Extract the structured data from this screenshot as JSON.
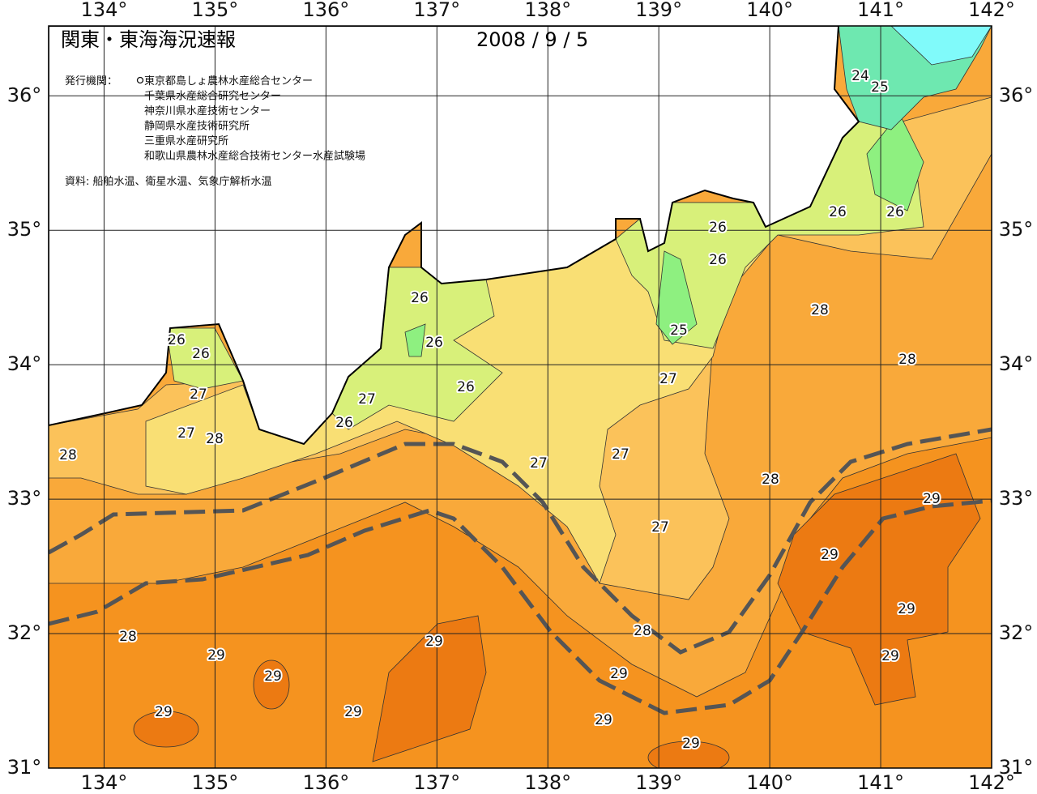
{
  "map": {
    "title": "関東・東海海況速報",
    "date": "2008 / 9 / 5",
    "publisher_label": "発行機関：",
    "publishers": [
      "東京都島しょ農林水産総合センター",
      "千葉県水産総合研究センター",
      "神奈川県水産技術センター",
      "静岡県水産技術研究所",
      "三重県水産研究所",
      "和歌山県農林水産総合技術センター水産試験場"
    ],
    "source": "資料: 船舶水温、衛星水温、気象庁解析水温",
    "xlim": [
      133.5,
      142
    ],
    "ylim": [
      31,
      36.52
    ],
    "xticks": [
      {
        "value": 134,
        "label": "134°"
      },
      {
        "value": 135,
        "label": "135°"
      },
      {
        "value": 136,
        "label": "136°"
      },
      {
        "value": 137,
        "label": "137°"
      },
      {
        "value": 138,
        "label": "138°"
      },
      {
        "value": 139,
        "label": "139°"
      },
      {
        "value": 140,
        "label": "140°"
      },
      {
        "value": 141,
        "label": "141°"
      },
      {
        "value": 142,
        "label": "142°"
      }
    ],
    "yticks": [
      {
        "value": 31,
        "label": "31°"
      },
      {
        "value": 32,
        "label": "32°"
      },
      {
        "value": 33,
        "label": "33°"
      },
      {
        "value": 34,
        "label": "34°"
      },
      {
        "value": 35,
        "label": "35°"
      },
      {
        "value": 36,
        "label": "36°"
      }
    ],
    "grid": true,
    "contour_labels": [
      24,
      25,
      26,
      26,
      26,
      26,
      26,
      26,
      26,
      26,
      26,
      26,
      27,
      27,
      28,
      27,
      28,
      27,
      27,
      27,
      28,
      28,
      28,
      25,
      27,
      29,
      29,
      29,
      29,
      28,
      29,
      29,
      29,
      29,
      29,
      28,
      29,
      29,
      29
    ]
  }
}
